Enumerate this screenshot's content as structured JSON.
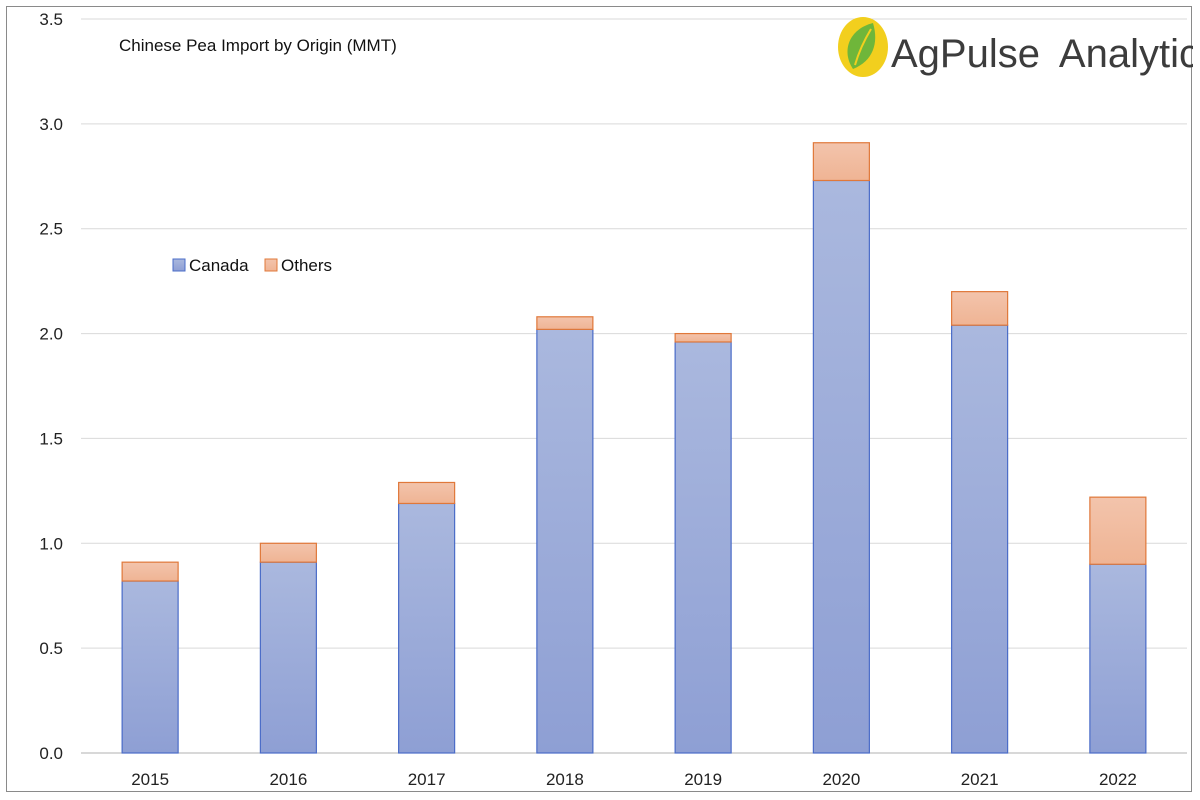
{
  "chart_data": {
    "type": "bar",
    "stacked": true,
    "title": "Chinese Pea Import by Origin (MMT)",
    "xlabel": "",
    "ylabel": "",
    "categories": [
      "2015",
      "2016",
      "2017",
      "2018",
      "2019",
      "2020",
      "2021",
      "2022"
    ],
    "series": [
      {
        "name": "Canada",
        "values": [
          0.82,
          0.91,
          1.19,
          2.02,
          1.96,
          2.73,
          2.04,
          0.9
        ],
        "fill_top": "#aab8de",
        "fill_bottom": "#8e9fd4",
        "stroke": "#4a6cc8"
      },
      {
        "name": "Others",
        "values": [
          0.09,
          0.09,
          0.1,
          0.06,
          0.04,
          0.18,
          0.16,
          0.32
        ],
        "fill_top": "#f3c4ac",
        "fill_bottom": "#efb494",
        "stroke": "#e0783a"
      }
    ],
    "ylim": [
      0,
      3.5
    ],
    "yticks": [
      "0.0",
      "0.5",
      "1.0",
      "1.5",
      "2.0",
      "2.5",
      "3.0",
      "3.5"
    ],
    "grid": true,
    "legend_position": "upper-left, inside plot"
  },
  "logo": {
    "brand_primary": "AgPulse",
    "brand_secondary": "Analytica",
    "brand_color": "#3c3c3c",
    "leaf_outer_color": "#f2cf1e",
    "leaf_inner_color": "#6fb63a"
  }
}
